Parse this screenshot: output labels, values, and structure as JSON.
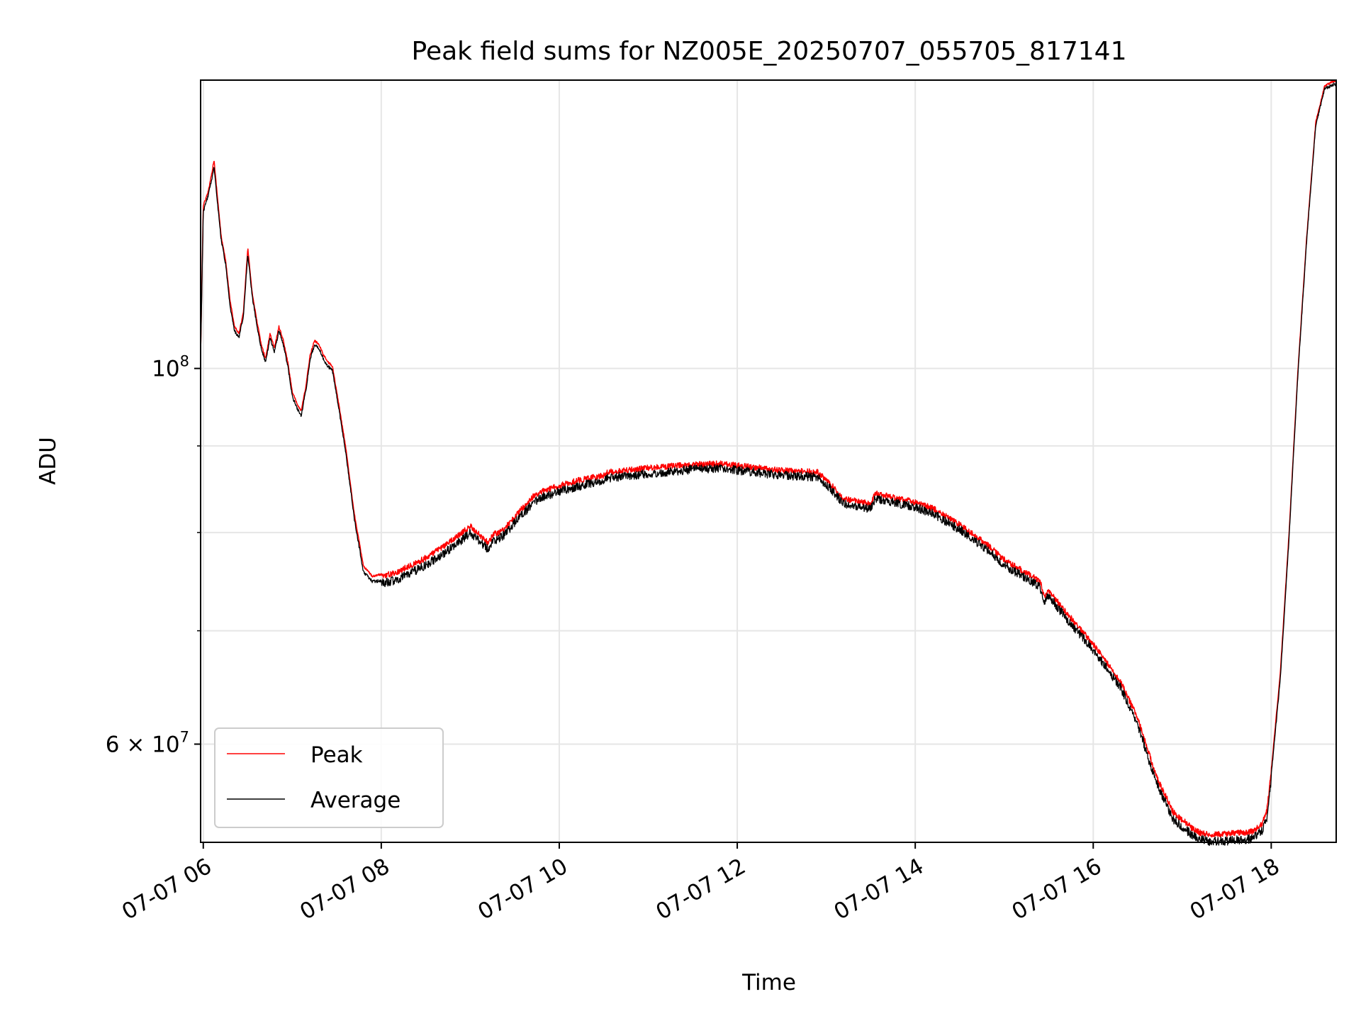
{
  "chart_data": {
    "type": "line",
    "title": "Peak field sums for NZ005E_20250707_055705_817141",
    "xlabel": "Time",
    "ylabel": "ADU",
    "y_scale": "log",
    "grid": true,
    "legend_placement": "lower-left",
    "x_ticks": [
      "07-07 06",
      "07-07 08",
      "07-07 10",
      "07-07 12",
      "07-07 14",
      "07-07 16",
      "07-07 18"
    ],
    "x_tick_hours": [
      6,
      8,
      10,
      12,
      14,
      16,
      18
    ],
    "xlim_hours": [
      5.97,
      18.73
    ],
    "ylim": [
      52500000,
      148000000
    ],
    "y_major_ticks": [
      {
        "value": 100000000,
        "label": "10^8",
        "base": "10",
        "exp": "8"
      },
      {
        "value": 60000000,
        "label": "6×10^7",
        "base": "6 × 10",
        "exp": "7"
      }
    ],
    "y_minor_ticks": [
      70000000,
      80000000,
      90000000
    ],
    "series": [
      {
        "name": "Peak",
        "color": "#ff0000",
        "x_hours": [
          5.97,
          6.0,
          6.05,
          6.1,
          6.12,
          6.15,
          6.2,
          6.25,
          6.3,
          6.35,
          6.4,
          6.45,
          6.5,
          6.55,
          6.6,
          6.65,
          6.7,
          6.75,
          6.8,
          6.85,
          6.9,
          6.95,
          7.0,
          7.05,
          7.1,
          7.15,
          7.2,
          7.25,
          7.3,
          7.35,
          7.4,
          7.45,
          7.5,
          7.6,
          7.7,
          7.8,
          7.9,
          8.0,
          8.1,
          8.2,
          8.3,
          8.4,
          8.5,
          8.6,
          8.8,
          9.0,
          9.2,
          9.27,
          9.3,
          9.4,
          9.6,
          9.65,
          9.7,
          9.8,
          10.0,
          10.2,
          10.5,
          10.55,
          11.0,
          11.5,
          11.8,
          12.0,
          12.5,
          12.9,
          13.0,
          13.2,
          13.5,
          13.55,
          13.6,
          14.0,
          14.2,
          14.5,
          14.8,
          15.0,
          15.4,
          15.45,
          15.5,
          15.7,
          16.0,
          16.3,
          16.5,
          16.7,
          16.9,
          17.1,
          17.2,
          17.3,
          17.4,
          17.5,
          17.6,
          17.7,
          17.8,
          17.9,
          17.95,
          18.0,
          18.1,
          18.2,
          18.3,
          18.4,
          18.5,
          18.6,
          18.7,
          18.73
        ],
        "values": [
          102000000,
          125000000,
          127000000,
          131000000,
          133000000,
          128000000,
          120000000,
          116000000,
          110000000,
          106000000,
          105000000,
          108000000,
          118000000,
          111000000,
          107000000,
          103500000,
          101500000,
          105000000,
          103000000,
          106000000,
          104000000,
          101000000,
          97000000,
          95500000,
          94500000,
          97500000,
          102000000,
          104000000,
          103500000,
          102000000,
          101000000,
          100500000,
          97000000,
          90000000,
          82000000,
          76500000,
          75500000,
          75700000,
          75900000,
          76200000,
          76700000,
          77100000,
          77600000,
          78200000,
          79500000,
          81000000,
          79200000,
          80300000,
          80100000,
          80900000,
          83200000,
          83600000,
          84300000,
          84900000,
          85600000,
          86200000,
          86800000,
          87200000,
          87700000,
          88100000,
          88200000,
          88000000,
          87400000,
          87200000,
          86300000,
          84100000,
          83500000,
          84700000,
          84600000,
          83700000,
          83000000,
          81200000,
          79100000,
          77400000,
          75200000,
          73700000,
          74200000,
          72000000,
          69000000,
          65700000,
          62400000,
          57800000,
          54900000,
          53800000,
          53400000,
          53300000,
          53300000,
          53300000,
          53400000,
          53400000,
          53500000,
          54100000,
          55000000,
          58000000,
          66000000,
          80000000,
          100000000,
          120000000,
          140000000,
          147000000,
          148000000,
          148000000
        ]
      },
      {
        "name": "Average",
        "color": "#000000",
        "x_hours": [
          5.97,
          6.0,
          6.05,
          6.1,
          6.12,
          6.15,
          6.2,
          6.25,
          6.3,
          6.35,
          6.4,
          6.45,
          6.5,
          6.55,
          6.6,
          6.65,
          6.7,
          6.75,
          6.8,
          6.85,
          6.9,
          6.95,
          7.0,
          7.05,
          7.1,
          7.15,
          7.2,
          7.25,
          7.3,
          7.35,
          7.4,
          7.45,
          7.5,
          7.6,
          7.7,
          7.8,
          7.9,
          8.0,
          8.1,
          8.2,
          8.3,
          8.4,
          8.5,
          8.6,
          8.8,
          9.0,
          9.2,
          9.27,
          9.3,
          9.4,
          9.6,
          9.65,
          9.7,
          9.8,
          10.0,
          10.2,
          10.5,
          10.55,
          11.0,
          11.5,
          11.8,
          12.0,
          12.5,
          12.9,
          13.0,
          13.2,
          13.5,
          13.55,
          13.6,
          14.0,
          14.2,
          14.5,
          14.8,
          15.0,
          15.4,
          15.45,
          15.5,
          15.7,
          16.0,
          16.3,
          16.5,
          16.7,
          16.9,
          17.1,
          17.2,
          17.3,
          17.4,
          17.5,
          17.6,
          17.7,
          17.8,
          17.9,
          17.95,
          18.0,
          18.1,
          18.2,
          18.3,
          18.4,
          18.5,
          18.6,
          18.7,
          18.73
        ],
        "values": [
          101500000,
          124000000,
          126500000,
          130000000,
          132000000,
          127000000,
          119500000,
          115500000,
          109000000,
          105500000,
          104500000,
          107500000,
          117000000,
          110500000,
          106500000,
          103000000,
          101000000,
          104500000,
          102500000,
          105500000,
          103500000,
          100500000,
          96500000,
          95000000,
          94000000,
          97000000,
          101500000,
          103500000,
          103000000,
          101500000,
          100500000,
          100000000,
          96500000,
          89500000,
          81500000,
          76000000,
          75000000,
          75100000,
          75300000,
          75600000,
          76100000,
          76500000,
          77000000,
          77600000,
          78900000,
          80400000,
          78700000,
          79700000,
          79600000,
          80400000,
          82700000,
          83100000,
          83800000,
          84400000,
          85100000,
          85700000,
          86300000,
          86700000,
          87200000,
          87700000,
          87800000,
          87600000,
          87000000,
          86800000,
          85900000,
          83700000,
          83100000,
          84300000,
          84200000,
          83300000,
          82600000,
          80800000,
          78700000,
          77000000,
          74800000,
          73300000,
          73800000,
          71600000,
          68600000,
          65300000,
          62000000,
          57400000,
          54500000,
          53400000,
          53000000,
          52900000,
          52900000,
          52900000,
          53000000,
          53000000,
          53100000,
          53700000,
          54600000,
          57600000,
          65500000,
          79500000,
          99500000,
          119500000,
          139500000,
          146500000,
          147500000,
          147500000
        ]
      }
    ]
  }
}
